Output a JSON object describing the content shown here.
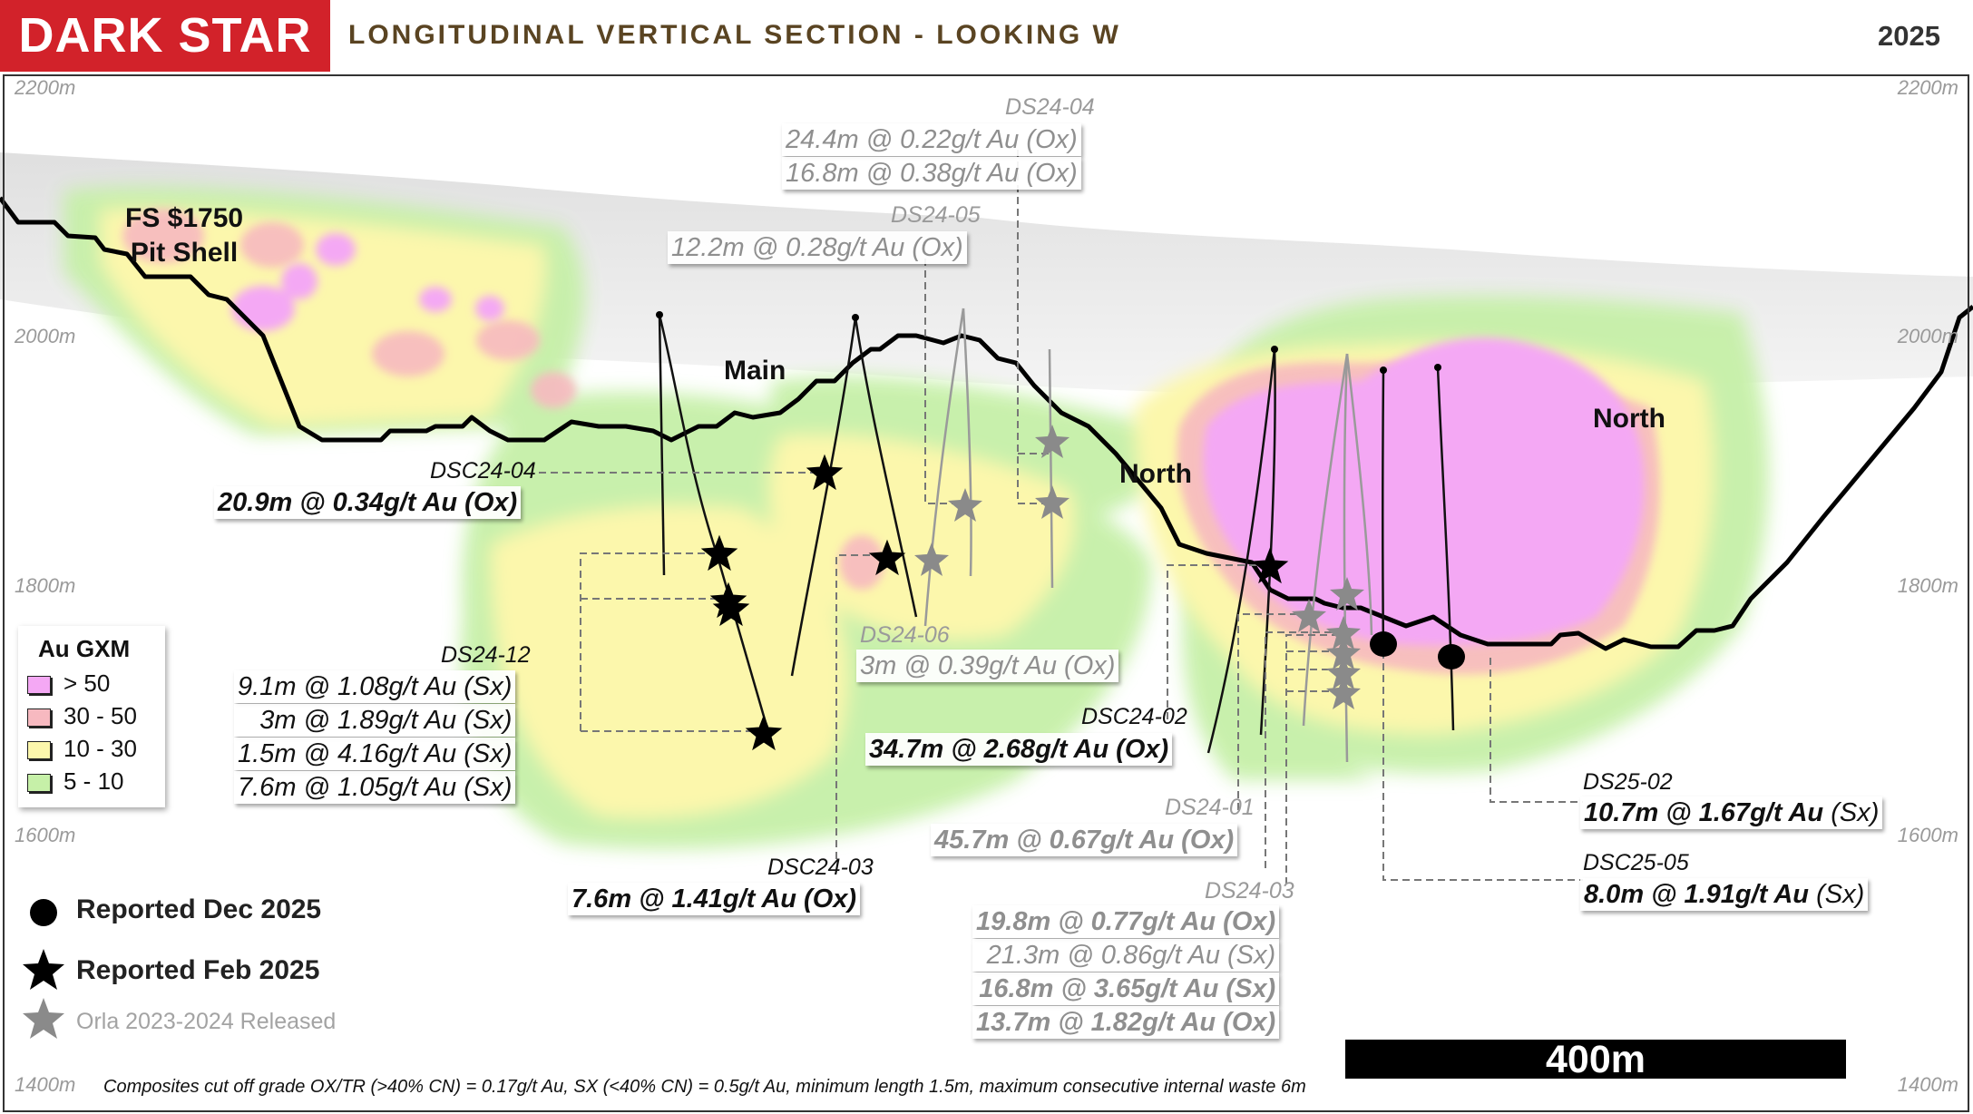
{
  "header": {
    "logo": "DARK STAR",
    "title": "LONGITUDINAL VERTICAL SECTION - LOOKING W",
    "year": "2025"
  },
  "elevations": [
    "2200m",
    "2000m",
    "1800m",
    "1600m",
    "1400m"
  ],
  "labels": {
    "pit_shell_1": "FS $1750",
    "pit_shell_2": "Pit Shell",
    "main": "Main",
    "north_1": "North",
    "north_2": "North"
  },
  "intercepts": {
    "dsc24_04": {
      "hole": "DSC24-04",
      "lines": [
        "20.9m @ 0.34g/t Au (Ox)"
      ]
    },
    "ds24_12": {
      "hole": "DS24-12",
      "lines": [
        "9.1m @ 1.08g/t Au (Sx)",
        "3m @ 1.89g/t Au (Sx)",
        "1.5m @ 4.16g/t Au (Sx)",
        "7.6m @ 1.05g/t Au (Sx)"
      ]
    },
    "ds24_04": {
      "hole": "DS24-04",
      "lines": [
        "24.4m @ 0.22g/t Au (Ox)",
        "16.8m @ 0.38g/t Au (Ox)"
      ]
    },
    "ds24_05": {
      "hole": "DS24-05",
      "lines": [
        "12.2m @ 0.28g/t Au (Ox)"
      ]
    },
    "ds24_06": {
      "hole": "DS24-06",
      "lines": [
        "3m @ 0.39g/t Au (Ox)"
      ]
    },
    "dsc24_02": {
      "hole": "DSC24-02",
      "lines": [
        "34.7m @ 2.68g/t Au (Ox)"
      ]
    },
    "ds24_01": {
      "hole": "DS24-01",
      "lines": [
        "45.7m @ 0.67g/t Au (Ox)"
      ]
    },
    "dsc24_03": {
      "hole": "DSC24-03",
      "lines": [
        "7.6m @ 1.41g/t Au (Ox)"
      ]
    },
    "ds24_03": {
      "hole": "DS24-03",
      "lines": [
        "19.8m @ 0.77g/t Au (Ox)",
        "21.3m @ 0.86g/t Au (Sx)",
        "16.8m @ 3.65g/t Au (Sx)",
        "13.7m @ 1.82g/t Au (Ox)"
      ]
    },
    "ds25_02": {
      "hole": "DS25-02",
      "value": "10.7m @ 1.67g/t Au",
      "type": "(Sx)"
    },
    "dsc25_05": {
      "hole": "DSC25-05",
      "value": "8.0m @ 1.91g/t Au",
      "type": "(Sx)"
    }
  },
  "legend": {
    "title": "Au GXM",
    "items": [
      {
        "label": "> 50",
        "color": "#f4a8f4"
      },
      {
        "label": "30 - 50",
        "color": "#f7b9c0"
      },
      {
        "label": "10 - 30",
        "color": "#fcf7ac"
      },
      {
        "label": "5 - 10",
        "color": "#c6f0a8"
      }
    ]
  },
  "symbols": {
    "dec_2025": "Reported Dec 2025",
    "feb_2025": "Reported Feb 2025",
    "orla": "Orla 2023-2024 Released"
  },
  "scale_bar": "400m",
  "footnote": "Composites cut off grade OX/TR (>40% CN) = 0.17g/t Au, SX (<40% CN) = 0.5g/t Au, minimum length 1.5m, maximum consecutive internal waste 6m"
}
